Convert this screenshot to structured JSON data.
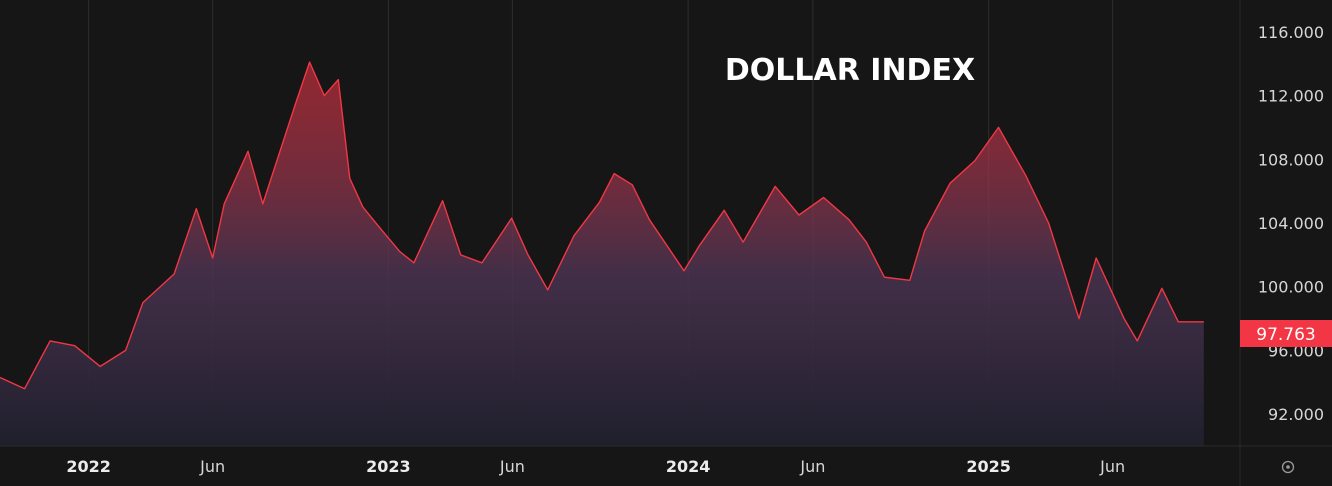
{
  "chart_data": {
    "type": "area",
    "title": "DOLLAR INDEX",
    "xlabel": "",
    "ylabel": "",
    "x_tick_labels": [
      "2022",
      "Jun",
      "2023",
      "Jun",
      "2024",
      "Jun",
      "2025",
      "Jun"
    ],
    "x_tick_dates": [
      "2022-01-01",
      "2022-06-01",
      "2023-01-01",
      "2023-06-01",
      "2024-01-01",
      "2024-06-01",
      "2025-01-01",
      "2025-06-01"
    ],
    "y_ticks": [
      "92.000",
      "96.000",
      "100.000",
      "104.000",
      "108.000",
      "112.000",
      "116.000"
    ],
    "ylim": [
      90.0,
      118.0
    ],
    "xlim": [
      "2021-09-15",
      "2025-09-30"
    ],
    "grid": "vertical",
    "last_value": 97.763,
    "last_value_label": "97.763",
    "line_color": "#f23645",
    "series": [
      {
        "x": [
          "2021-09-15",
          "2021-10-15",
          "2021-11-15",
          "2021-12-15",
          "2022-01-15",
          "2022-02-15",
          "2022-03-08",
          "2022-04-15",
          "2022-05-12",
          "2022-06-01",
          "2022-06-15",
          "2022-07-14",
          "2022-08-01",
          "2022-08-20",
          "2022-09-10",
          "2022-09-27",
          "2022-10-15",
          "2022-11-01",
          "2022-11-15",
          "2022-12-01",
          "2022-12-20",
          "2023-01-15",
          "2023-02-01",
          "2023-03-08",
          "2023-03-30",
          "2023-04-25",
          "2023-05-31",
          "2023-06-20",
          "2023-07-14",
          "2023-08-15",
          "2023-09-15",
          "2023-10-03",
          "2023-10-25",
          "2023-11-15",
          "2023-12-27",
          "2024-01-15",
          "2024-02-14",
          "2024-03-08",
          "2024-04-16",
          "2024-05-15",
          "2024-06-14",
          "2024-07-15",
          "2024-08-05",
          "2024-08-27",
          "2024-09-27",
          "2024-10-15",
          "2024-11-15",
          "2024-12-15",
          "2025-01-13",
          "2025-02-15",
          "2025-03-15",
          "2025-04-21",
          "2025-05-12",
          "2025-06-15",
          "2025-07-01",
          "2025-07-31",
          "2025-08-20",
          "2025-09-20"
        ],
        "values": [
          94.3,
          93.6,
          96.6,
          96.3,
          95.0,
          96.0,
          99.0,
          100.8,
          104.9,
          101.8,
          105.2,
          108.5,
          105.2,
          108.2,
          111.5,
          114.1,
          112.0,
          113.0,
          106.8,
          105.0,
          103.8,
          102.2,
          101.5,
          105.4,
          102.0,
          101.5,
          104.3,
          102.0,
          99.8,
          103.2,
          105.3,
          107.1,
          106.4,
          104.2,
          101.0,
          102.6,
          104.8,
          102.8,
          106.3,
          104.5,
          105.6,
          104.2,
          102.8,
          100.6,
          100.4,
          103.5,
          106.5,
          107.9,
          110.0,
          107.0,
          104.0,
          98.0,
          101.8,
          98.0,
          96.6,
          99.9,
          97.8,
          97.8
        ]
      }
    ]
  },
  "axis_buttons": {
    "settings_icon": "settings-icon"
  }
}
